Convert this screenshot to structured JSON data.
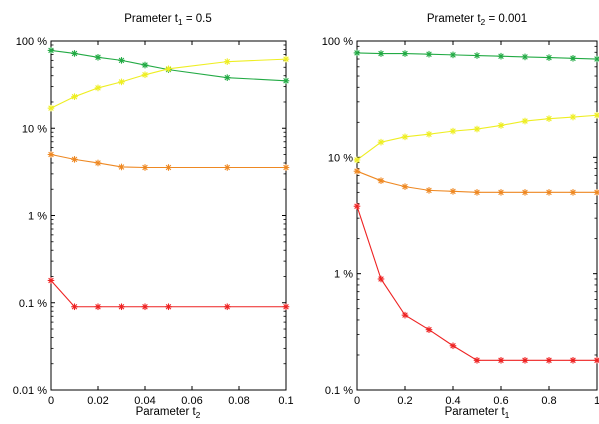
{
  "chart_data": [
    {
      "type": "line",
      "title": "Prameter t",
      "title_sub": "1",
      "title_suffix": " = 0.5",
      "xlabel": "Parameter t",
      "xlabel_sub": "2",
      "yscale": "log",
      "xlim": [
        0,
        0.1
      ],
      "ylim": [
        0.01,
        100
      ],
      "xticks": [
        "0",
        "0.02",
        "0.04",
        "0.06",
        "0.08",
        "0.1"
      ],
      "xtick_values": [
        0,
        0.02,
        0.04,
        0.06,
        0.08,
        0.1
      ],
      "yticks": [
        "100 %",
        "10 %",
        "1 %",
        "0.1 %",
        "0.01 %"
      ],
      "ytick_values": [
        100,
        10,
        1,
        0.1,
        0.01
      ],
      "grid": false,
      "x": [
        0,
        0.01,
        0.02,
        0.03,
        0.04,
        0.05,
        0.075,
        0.1
      ],
      "series": [
        {
          "color": "#22aa44",
          "values": [
            78,
            72,
            65,
            60,
            53,
            47,
            38,
            35
          ]
        },
        {
          "color": "#eeee22",
          "values": [
            17,
            23,
            29,
            34,
            41,
            48,
            58,
            62
          ]
        },
        {
          "color": "#ee8822",
          "values": [
            5.0,
            4.4,
            4.0,
            3.6,
            3.55,
            3.55,
            3.55,
            3.55
          ]
        },
        {
          "color": "#ee2222",
          "values": [
            0.18,
            0.09,
            0.09,
            0.09,
            0.09,
            0.09,
            0.09,
            0.09
          ]
        }
      ]
    },
    {
      "type": "line",
      "title": "Prameter t",
      "title_sub": "2",
      "title_suffix": " = 0.001",
      "xlabel": "Parameter t",
      "xlabel_sub": "1",
      "yscale": "log",
      "xlim": [
        0,
        1
      ],
      "ylim": [
        0.1,
        100
      ],
      "xticks": [
        "0",
        "0.2",
        "0.4",
        "0.6",
        "0.8",
        "1"
      ],
      "xtick_values": [
        0,
        0.2,
        0.4,
        0.6,
        0.8,
        1
      ],
      "yticks": [
        "100 %",
        "10 %",
        "1 %",
        "0.1 %"
      ],
      "ytick_values": [
        100,
        10,
        1,
        0.1
      ],
      "grid": false,
      "x": [
        0,
        0.1,
        0.2,
        0.3,
        0.4,
        0.5,
        0.6,
        0.7,
        0.8,
        0.9,
        1.0
      ],
      "series": [
        {
          "color": "#22aa44",
          "values": [
            79,
            78,
            78,
            77,
            76,
            75,
            74,
            73,
            72,
            71,
            70
          ]
        },
        {
          "color": "#eeee22",
          "values": [
            9.5,
            13.5,
            15,
            15.8,
            16.8,
            17.5,
            18.8,
            20.5,
            21.5,
            22.2,
            23
          ]
        },
        {
          "color": "#ee8822",
          "values": [
            7.6,
            6.3,
            5.6,
            5.2,
            5.1,
            5.0,
            5.0,
            5.0,
            5.0,
            5.0,
            5.0
          ]
        },
        {
          "color": "#ee2222",
          "values": [
            3.8,
            0.9,
            0.44,
            0.33,
            0.24,
            0.18,
            0.18,
            0.18,
            0.18,
            0.18,
            0.18
          ]
        }
      ]
    }
  ]
}
